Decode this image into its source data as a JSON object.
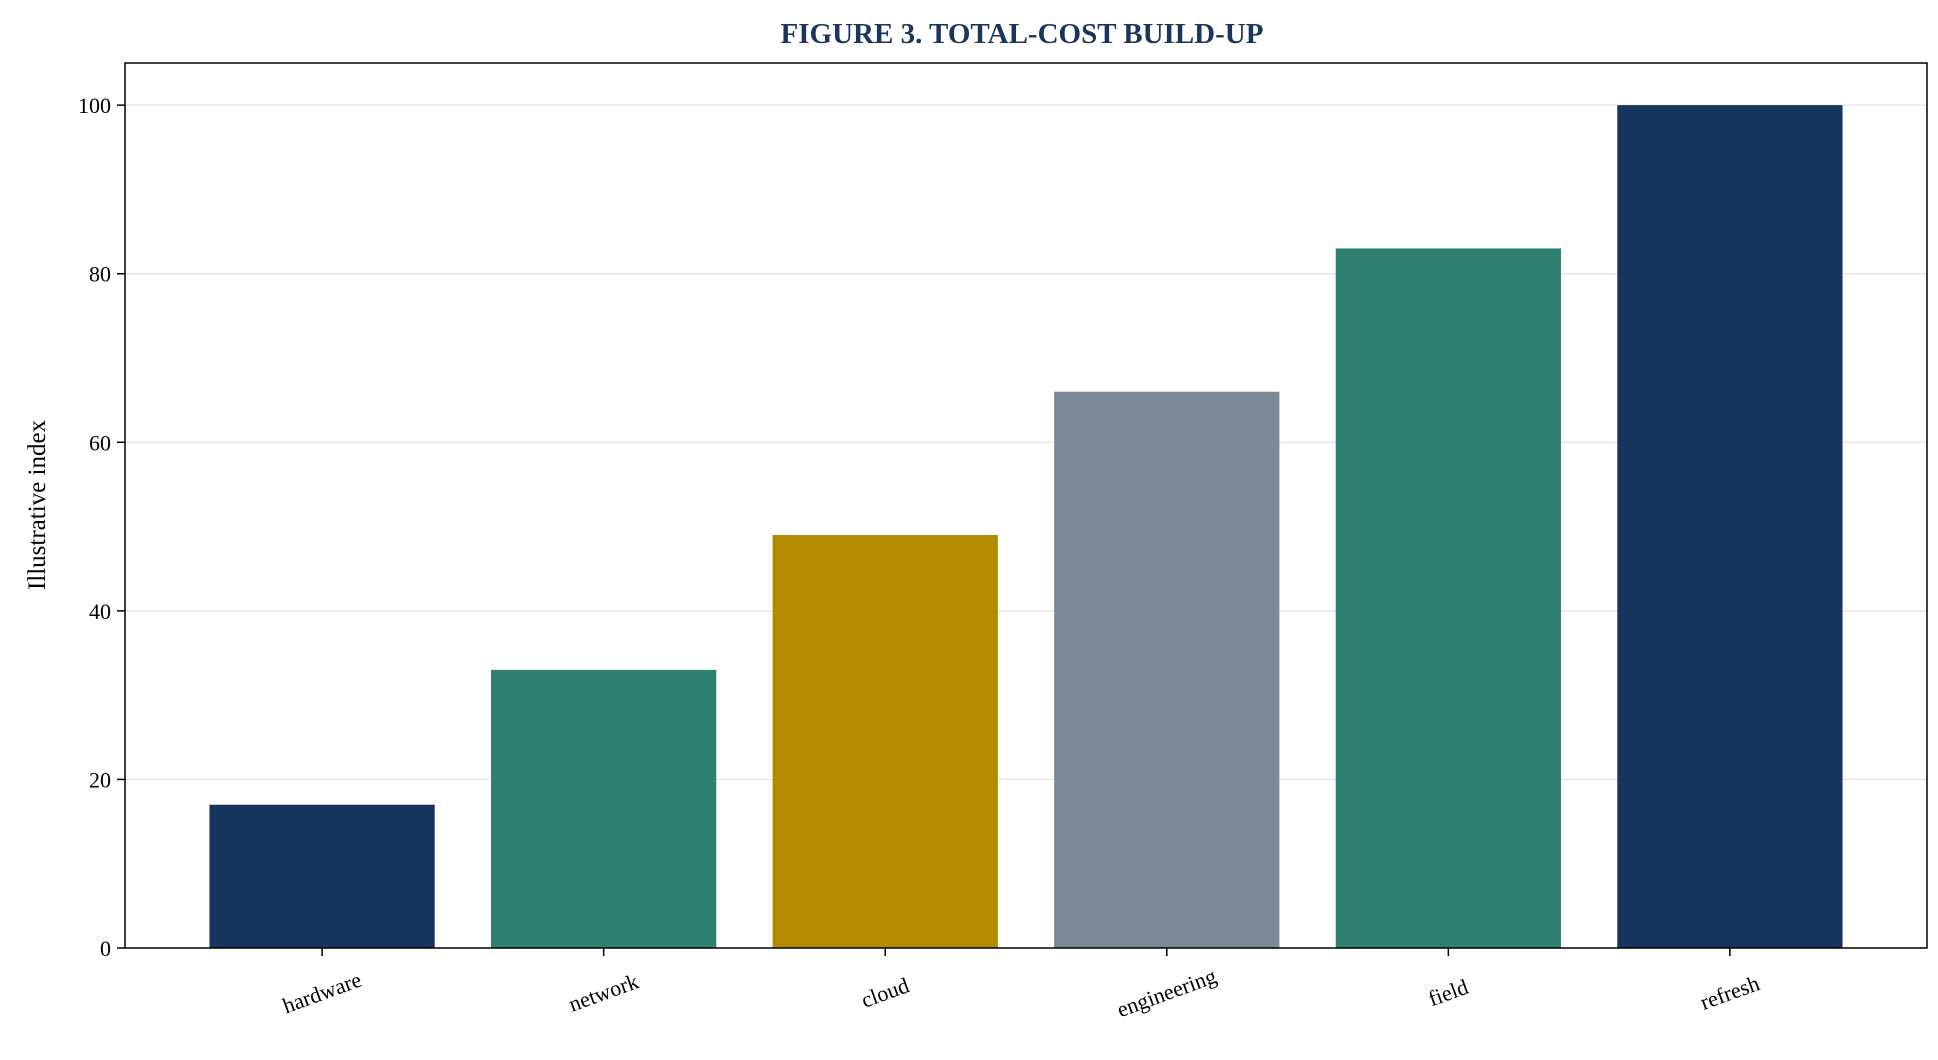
{
  "chart_data": {
    "type": "bar",
    "title": "FIGURE 3. TOTAL-COST BUILD-UP",
    "xlabel": "",
    "ylabel": "Illustrative index",
    "categories": [
      "hardware",
      "network",
      "cloud",
      "engineering",
      "field",
      "refresh"
    ],
    "values": [
      17,
      33,
      49,
      66,
      83,
      100
    ],
    "bar_colors": [
      "#17355c",
      "#2e8070",
      "#b38b00",
      "#7b8898",
      "#2e8070",
      "#17355c"
    ],
    "ylim": [
      0,
      105
    ],
    "yticks": [
      0,
      20,
      40,
      60,
      80,
      100
    ],
    "grid": "horizontal",
    "legend": "none"
  }
}
